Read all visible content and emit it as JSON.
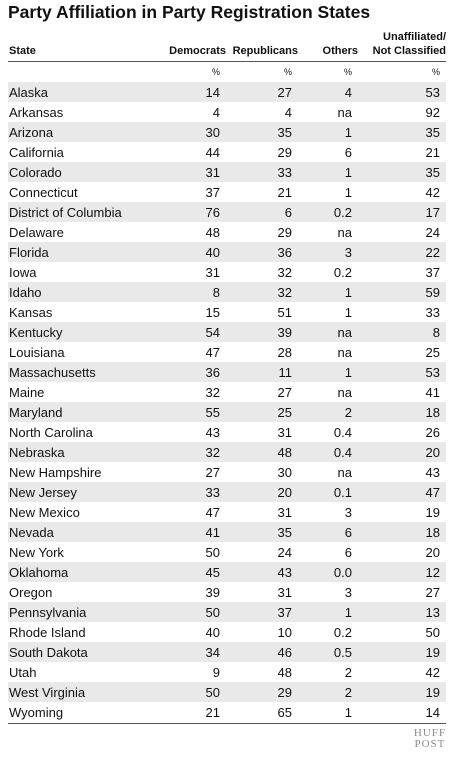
{
  "chart_data": {
    "type": "table",
    "title": "Party Affiliation in Party Registration States",
    "columns": [
      "State",
      "Democrats",
      "Republicans",
      "Others",
      "Unaffiliated/ Not Classified"
    ],
    "units": [
      "",
      "%",
      "%",
      "%",
      "%"
    ],
    "rows": [
      [
        "Alaska",
        "14",
        "27",
        "4",
        "53"
      ],
      [
        "Arkansas",
        "4",
        "4",
        "na",
        "92"
      ],
      [
        "Arizona",
        "30",
        "35",
        "1",
        "35"
      ],
      [
        "California",
        "44",
        "29",
        "6",
        "21"
      ],
      [
        "Colorado",
        "31",
        "33",
        "1",
        "35"
      ],
      [
        "Connecticut",
        "37",
        "21",
        "1",
        "42"
      ],
      [
        "District of Columbia",
        "76",
        "6",
        "0.2",
        "17"
      ],
      [
        "Delaware",
        "48",
        "29",
        "na",
        "24"
      ],
      [
        "Florida",
        "40",
        "36",
        "3",
        "22"
      ],
      [
        "Iowa",
        "31",
        "32",
        "0.2",
        "37"
      ],
      [
        "Idaho",
        "8",
        "32",
        "1",
        "59"
      ],
      [
        "Kansas",
        "15",
        "51",
        "1",
        "33"
      ],
      [
        "Kentucky",
        "54",
        "39",
        "na",
        "8"
      ],
      [
        "Louisiana",
        "47",
        "28",
        "na",
        "25"
      ],
      [
        "Massachusetts",
        "36",
        "11",
        "1",
        "53"
      ],
      [
        "Maine",
        "32",
        "27",
        "na",
        "41"
      ],
      [
        "Maryland",
        "55",
        "25",
        "2",
        "18"
      ],
      [
        "North Carolina",
        "43",
        "31",
        "0.4",
        "26"
      ],
      [
        "Nebraska",
        "32",
        "48",
        "0.4",
        "20"
      ],
      [
        "New Hampshire",
        "27",
        "30",
        "na",
        "43"
      ],
      [
        "New Jersey",
        "33",
        "20",
        "0.1",
        "47"
      ],
      [
        "New Mexico",
        "47",
        "31",
        "3",
        "19"
      ],
      [
        "Nevada",
        "41",
        "35",
        "6",
        "18"
      ],
      [
        "New York",
        "50",
        "24",
        "6",
        "20"
      ],
      [
        "Oklahoma",
        "45",
        "43",
        "0.0",
        "12"
      ],
      [
        "Oregon",
        "39",
        "31",
        "3",
        "27"
      ],
      [
        "Pennsylvania",
        "50",
        "37",
        "1",
        "13"
      ],
      [
        "Rhode Island",
        "40",
        "10",
        "0.2",
        "50"
      ],
      [
        "South Dakota",
        "34",
        "46",
        "0.5",
        "19"
      ],
      [
        "Utah",
        "9",
        "48",
        "2",
        "42"
      ],
      [
        "West Virginia",
        "50",
        "29",
        "2",
        "19"
      ],
      [
        "Wyoming",
        "21",
        "65",
        "1",
        "14"
      ]
    ]
  },
  "header": {
    "state": "State",
    "democrats": "Democrats",
    "republicans": "Republicans",
    "others": "Others",
    "unaffiliated_1": "Unaffiliated/",
    "unaffiliated_2": "Not Classified"
  },
  "logo": {
    "line1": "HUFF",
    "line2": "POST"
  },
  "colors": {
    "row_shade": "#e9e9e9",
    "logo": "#8a8a8a"
  }
}
